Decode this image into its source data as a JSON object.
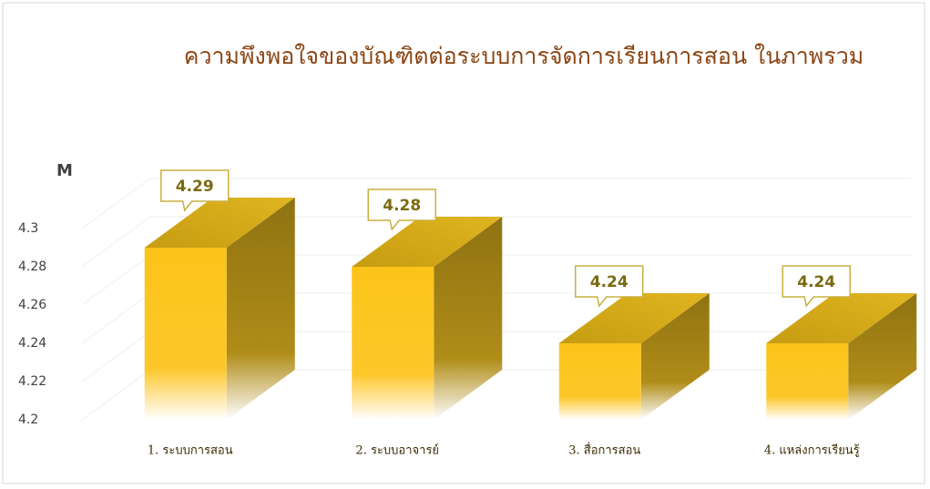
{
  "chart_data": {
    "type": "bar3d",
    "title": "ความพึงพอใจของบัณฑิตต่อระบบการจัดการเรียนการสอน ในภาพรวม",
    "y_axis_label": "M",
    "categories": [
      "1. ระบบการสอน",
      "2. ระบบอาจารย์",
      "3. สื่อการสอน",
      "4. แหล่งการเรียนรู้"
    ],
    "values": [
      4.29,
      4.28,
      4.24,
      4.24
    ],
    "color": "#fcc419",
    "ylim": [
      4.2,
      4.3
    ],
    "yticks": [
      4.2,
      4.22,
      4.24,
      4.26,
      4.28,
      4.3
    ],
    "grid": true
  }
}
